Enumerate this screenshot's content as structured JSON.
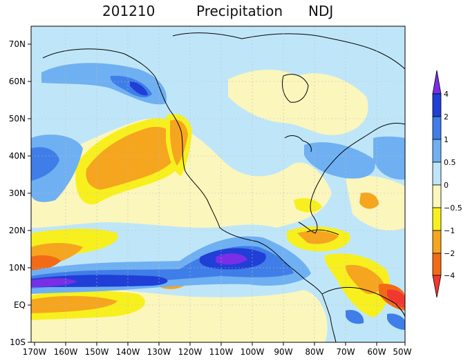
{
  "title": {
    "date": "201210",
    "variable": "Precipitation",
    "season": "NDJ"
  },
  "map": {
    "lon_labels": [
      "170W",
      "160W",
      "150W",
      "140W",
      "130W",
      "120W",
      "110W",
      "100W",
      "90W",
      "80W",
      "70W",
      "60W",
      "50W"
    ],
    "lat_labels": [
      "70N",
      "60N",
      "50N",
      "40N",
      "30N",
      "20N",
      "10N",
      "EQ",
      "10S"
    ]
  },
  "colorbar": {
    "labels": [
      "4",
      "2",
      "1",
      "0.5",
      "0",
      "−0.5",
      "−1",
      "−2",
      "−4"
    ],
    "colors": [
      "#7a2ee6",
      "#1f3fd6",
      "#3f7ee8",
      "#6fb0f2",
      "#bfe6f8",
      "#fbf6bc",
      "#f7f01e",
      "#f6a51e",
      "#f26a16",
      "#f03830"
    ]
  }
}
